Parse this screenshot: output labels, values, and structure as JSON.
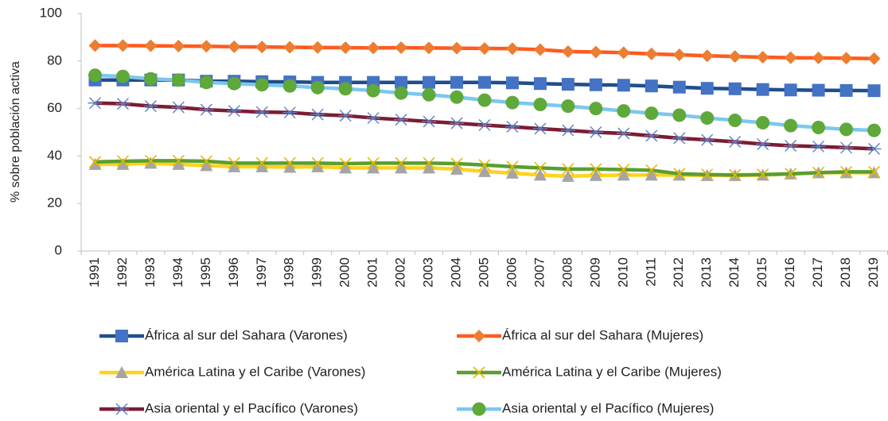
{
  "chart_data": {
    "type": "line",
    "y_label": "% sobre población activa",
    "categories": [
      "1991",
      "1992",
      "1993",
      "1994",
      "1995",
      "1996",
      "1997",
      "1998",
      "1999",
      "2000",
      "2001",
      "2002",
      "2003",
      "2004",
      "2005",
      "2006",
      "2007",
      "2008",
      "2009",
      "2010",
      "2011",
      "2012",
      "2013",
      "2014",
      "2015",
      "2016",
      "2017",
      "2018",
      "2019"
    ],
    "ylim": [
      0,
      100
    ],
    "yticks": [
      0,
      20,
      40,
      60,
      80,
      100
    ],
    "grid": false,
    "series": [
      {
        "name": "África al sur del Sahara (Varones)",
        "color": "#1f4e8c",
        "marker_color": "#4472c4",
        "marker": "square",
        "values": [
          72,
          72,
          72,
          72,
          71.5,
          71.5,
          71.3,
          71.2,
          71,
          71,
          71,
          71,
          71,
          71,
          71,
          70.8,
          70.5,
          70.2,
          70,
          69.8,
          69.5,
          69,
          68.5,
          68.3,
          68,
          67.8,
          67.7,
          67.6,
          67.5
        ]
      },
      {
        "name": "África al sur del Sahara (Mujeres)",
        "color": "#ff5a1f",
        "marker_color": "#ed7d31",
        "marker": "diamond",
        "values": [
          86.5,
          86.5,
          86.4,
          86.3,
          86.2,
          86,
          85.9,
          85.8,
          85.7,
          85.6,
          85.5,
          85.6,
          85.5,
          85.4,
          85.3,
          85.2,
          84.8,
          84,
          83.8,
          83.5,
          83,
          82.6,
          82.2,
          81.9,
          81.6,
          81.4,
          81.3,
          81.2,
          81
        ]
      },
      {
        "name": "América Latina y el Caribe (Varones)",
        "color": "#ffd21f",
        "marker_color": "#a5a5a5",
        "marker": "triangle",
        "values": [
          36.5,
          36.5,
          37,
          36.5,
          36,
          35.5,
          35.5,
          35.3,
          35.5,
          35,
          35,
          35,
          35,
          34.5,
          33.5,
          32.8,
          32,
          31.5,
          31.8,
          32,
          32,
          32,
          31.8,
          31.8,
          32,
          32.5,
          33,
          33,
          33
        ]
      },
      {
        "name": "América Latina y el Caribe (Mujeres)",
        "color": "#5a9e2f",
        "marker_color": "#e6b800",
        "marker": "x",
        "values": [
          37.5,
          37.8,
          38,
          38,
          37.8,
          37,
          37,
          37,
          37,
          36.8,
          37,
          37,
          37,
          36.8,
          36.2,
          35.5,
          35,
          34.5,
          34.5,
          34.3,
          34,
          32.5,
          32.2,
          32,
          32.2,
          32.5,
          33,
          33.3,
          33.3
        ]
      },
      {
        "name": "Asia oriental y el Pacífico (Varones)",
        "color": "#7b1c33",
        "marker_color": "#5b7fc4",
        "marker": "star",
        "values": [
          62.3,
          62,
          61,
          60.5,
          59.5,
          59,
          58.5,
          58.3,
          57.5,
          57,
          56,
          55.3,
          54.5,
          53.8,
          53,
          52.3,
          51.5,
          50.8,
          50,
          49.5,
          48.5,
          47.5,
          46.8,
          46,
          45,
          44.3,
          44,
          43.5,
          43
        ]
      },
      {
        "name": "Asia oriental y el Pacífico (Mujeres)",
        "color": "#7cc7f0",
        "marker_color": "#5fa83a",
        "marker": "circle",
        "values": [
          74,
          73.5,
          72.5,
          72,
          71,
          70.5,
          70,
          69.5,
          68.8,
          68.3,
          67.5,
          66.5,
          65.8,
          64.8,
          63.5,
          62.5,
          61.7,
          61,
          60,
          59,
          58,
          57.2,
          56,
          55,
          54,
          52.8,
          52,
          51.2,
          50.8
        ]
      }
    ]
  }
}
